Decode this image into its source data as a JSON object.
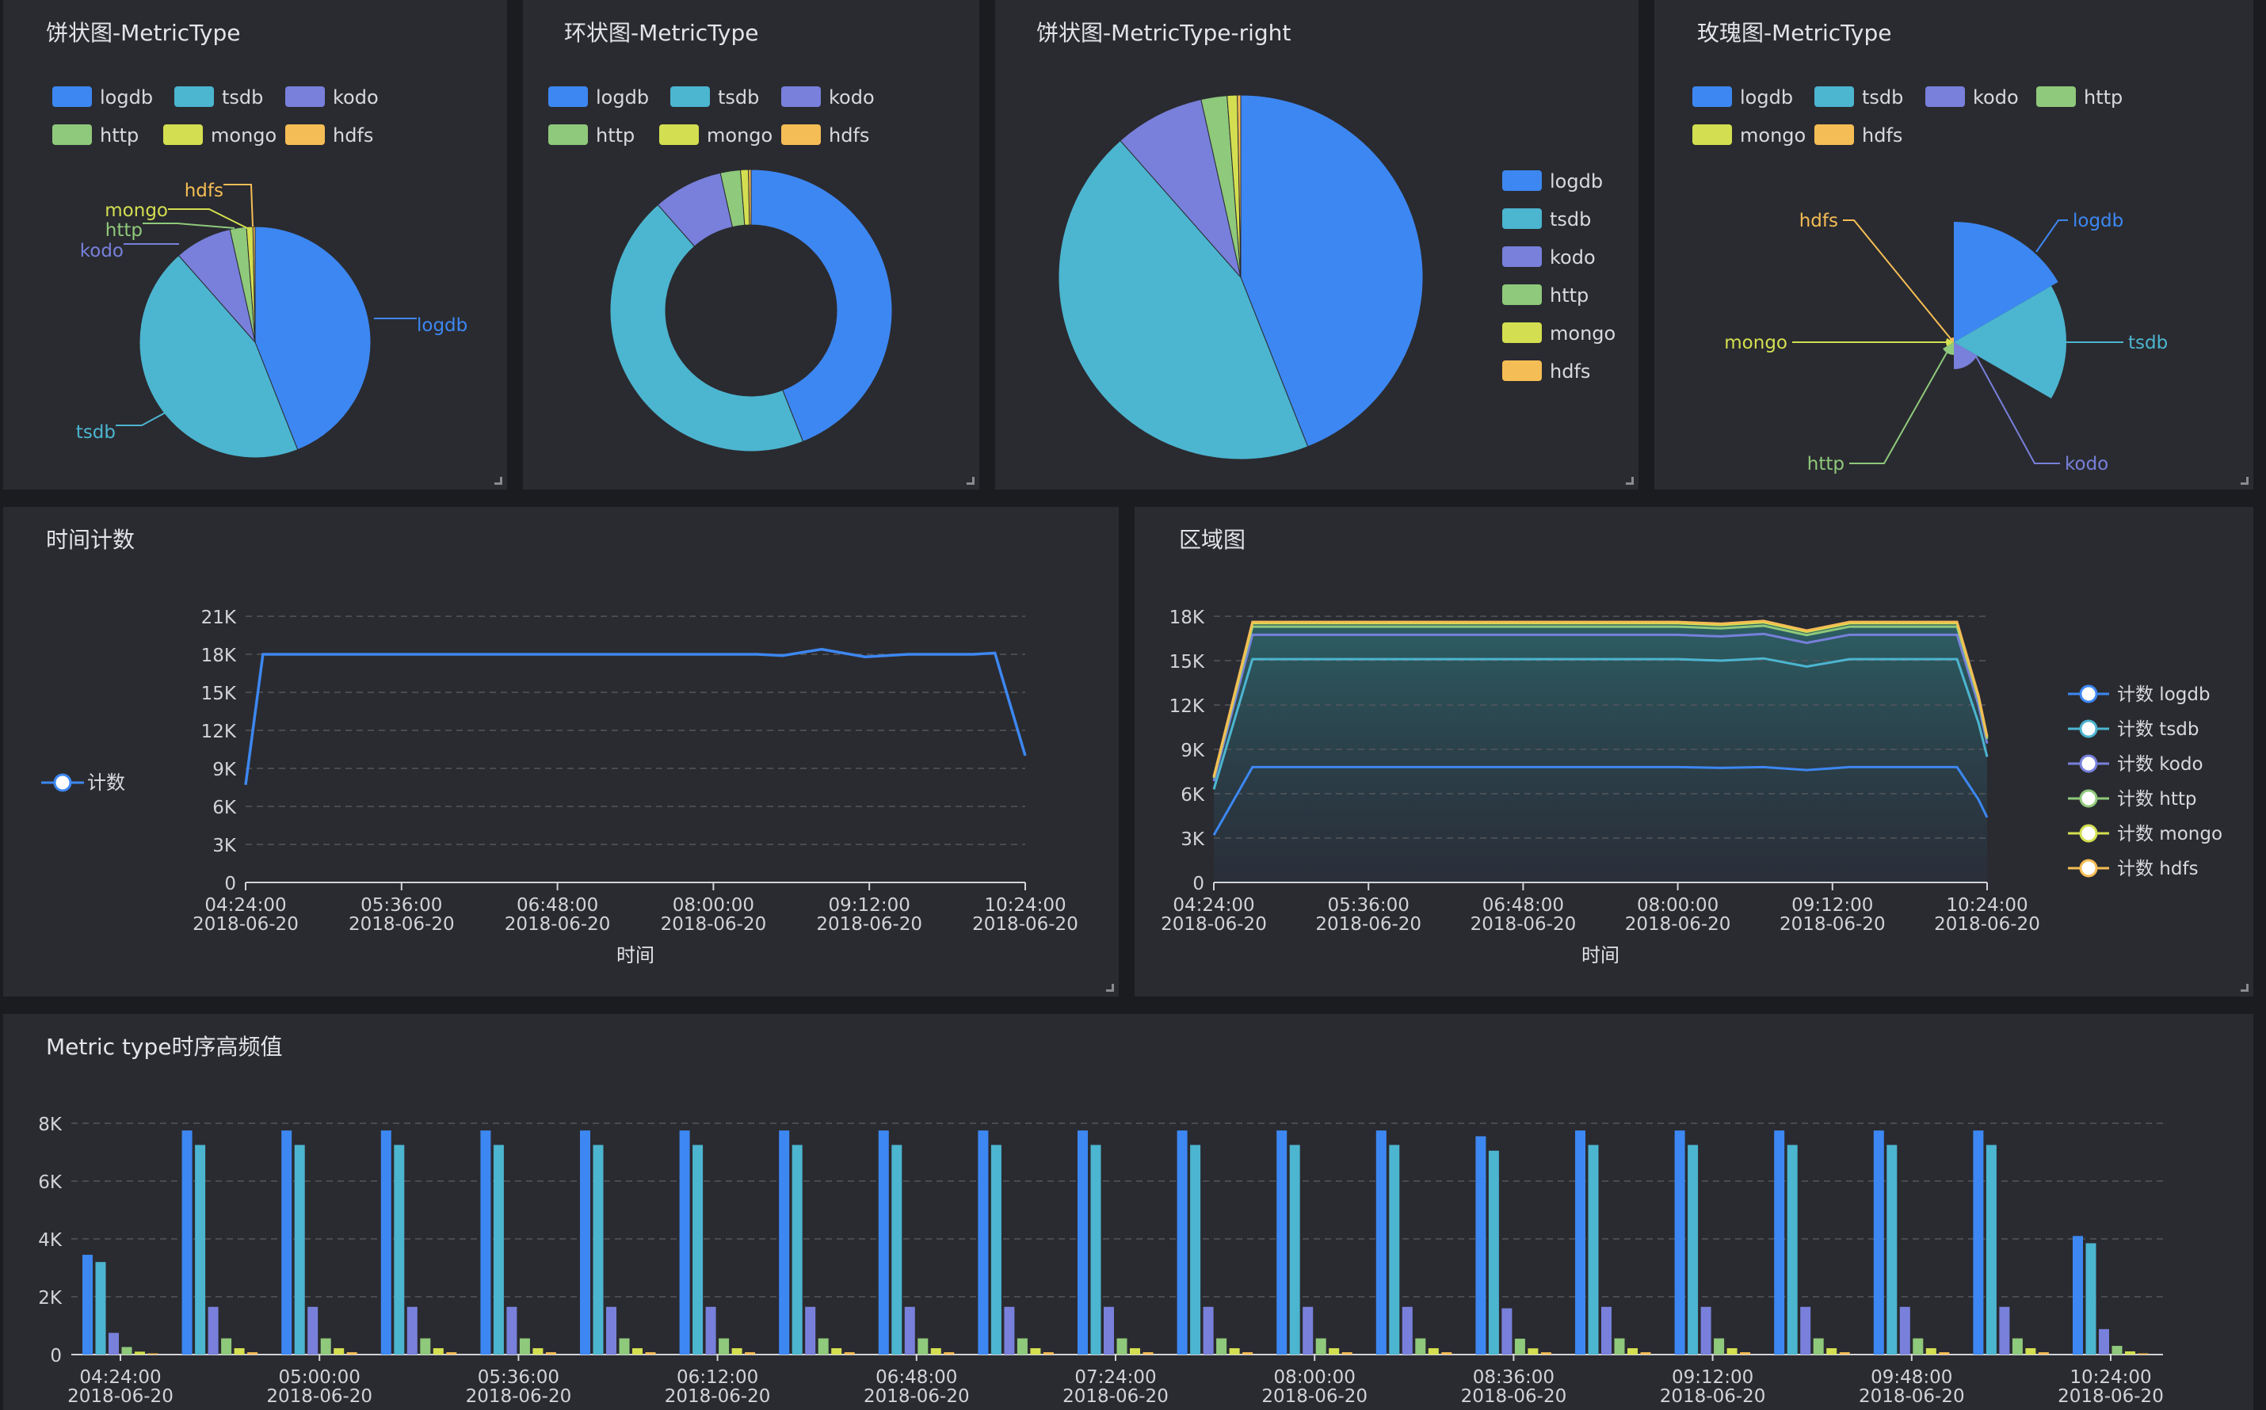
{
  "colors": {
    "logdb": "#3d87f2",
    "tsdb": "#4cb5d0",
    "kodo": "#7880db",
    "http": "#8fc97b",
    "mongo": "#d3df50",
    "hdfs": "#f5bd55"
  },
  "legend_order": [
    "logdb",
    "tsdb",
    "kodo",
    "http",
    "mongo",
    "hdfs"
  ],
  "panels": {
    "pie": {
      "title": "饼状图-MetricType"
    },
    "donut": {
      "title": "环状图-MetricType"
    },
    "pie_right": {
      "title": "饼状图-MetricType-right"
    },
    "rose": {
      "title": "玫瑰图-MetricType"
    },
    "time_count": {
      "title": "时间计数"
    },
    "area": {
      "title": "区域图"
    },
    "bars": {
      "title": "Metric type时序高频值"
    }
  },
  "chart_data": [
    {
      "id": "pie",
      "type": "pie",
      "title": "饼状图-MetricType",
      "labels": [
        "logdb",
        "tsdb",
        "kodo",
        "http",
        "mongo",
        "hdfs"
      ],
      "values": [
        44.0,
        44.5,
        8.0,
        2.3,
        0.9,
        0.3
      ],
      "legend": "top",
      "slice_labels": true
    },
    {
      "id": "donut",
      "type": "pie",
      "variant": "donut",
      "title": "环状图-MetricType",
      "labels": [
        "logdb",
        "tsdb",
        "kodo",
        "http",
        "mongo",
        "hdfs"
      ],
      "values": [
        44.0,
        44.5,
        8.0,
        2.3,
        0.9,
        0.3
      ],
      "legend": "top"
    },
    {
      "id": "pie_right",
      "type": "pie",
      "title": "饼状图-MetricType-right",
      "labels": [
        "logdb",
        "tsdb",
        "kodo",
        "http",
        "mongo",
        "hdfs"
      ],
      "values": [
        44.0,
        44.5,
        8.0,
        2.3,
        0.9,
        0.3
      ],
      "legend": "right"
    },
    {
      "id": "rose",
      "type": "pie",
      "variant": "rose",
      "title": "玫瑰图-MetricType",
      "labels": [
        "logdb",
        "tsdb",
        "kodo",
        "http",
        "mongo",
        "hdfs"
      ],
      "values": [
        44.0,
        44.5,
        8.0,
        2.3,
        0.9,
        0.3
      ],
      "legend": "top"
    },
    {
      "id": "time_count",
      "type": "line",
      "title": "时间计数",
      "xlabel": "时间",
      "x_ticks": [
        "04:24:00",
        "05:36:00",
        "06:48:00",
        "08:00:00",
        "09:12:00",
        "10:24:00"
      ],
      "x_tick_date": "2018-06-20",
      "x_range": [
        264,
        624
      ],
      "ylim": [
        0,
        21000
      ],
      "y_ticks": [
        "0",
        "3K",
        "6K",
        "9K",
        "12K",
        "15K",
        "18K",
        "21K"
      ],
      "legend": "left",
      "series": [
        {
          "name": "计数",
          "x": [
            264,
            272,
            440,
            480,
            500,
            512,
            530,
            550,
            570,
            600,
            610,
            624
          ],
          "y": [
            7700,
            18000,
            18000,
            18000,
            18000,
            17900,
            18400,
            17800,
            18000,
            18000,
            18100,
            10000
          ]
        }
      ]
    },
    {
      "id": "area",
      "type": "area",
      "title": "区域图",
      "stacked": true,
      "xlabel": "时间",
      "x_ticks": [
        "04:24:00",
        "05:36:00",
        "06:48:00",
        "08:00:00",
        "09:12:00",
        "10:24:00"
      ],
      "x_tick_date": "2018-06-20",
      "x_range": [
        264,
        624
      ],
      "ylim": [
        0,
        18000
      ],
      "y_ticks": [
        "0",
        "3K",
        "6K",
        "9K",
        "12K",
        "15K",
        "18K"
      ],
      "legend": "right",
      "x": [
        264,
        282,
        480,
        500,
        520,
        540,
        560,
        610,
        620,
        624
      ],
      "series": [
        {
          "name": "计数 logdb",
          "values": [
            3200,
            7800,
            7800,
            7750,
            7800,
            7600,
            7800,
            7800,
            5600,
            4400
          ]
        },
        {
          "name": "计数 tsdb",
          "values": [
            3100,
            7300,
            7300,
            7250,
            7350,
            7000,
            7300,
            7300,
            5200,
            4100
          ]
        },
        {
          "name": "计数 kodo",
          "values": [
            550,
            1650,
            1650,
            1640,
            1660,
            1600,
            1650,
            1650,
            1200,
            900
          ]
        },
        {
          "name": "计数 http",
          "values": [
            200,
            550,
            550,
            545,
            550,
            530,
            550,
            550,
            400,
            300
          ]
        },
        {
          "name": "计数 mongo",
          "values": [
            80,
            230,
            230,
            228,
            232,
            220,
            230,
            230,
            170,
            130
          ]
        },
        {
          "name": "计数 hdfs",
          "values": [
            30,
            90,
            90,
            88,
            90,
            85,
            90,
            90,
            70,
            50
          ]
        }
      ]
    },
    {
      "id": "bars",
      "type": "bar",
      "title": "Metric type时序高频值",
      "x_ticks": [
        "04:24:00",
        "05:00:00",
        "05:36:00",
        "06:12:00",
        "06:48:00",
        "07:24:00",
        "08:00:00",
        "08:36:00",
        "09:12:00",
        "09:48:00",
        "10:24:00"
      ],
      "x_tick_date": "2018-06-20",
      "ylim": [
        0,
        8000
      ],
      "y_ticks": [
        "0",
        "2K",
        "4K",
        "6K",
        "8K"
      ],
      "groups": 21,
      "series": [
        {
          "name": "logdb",
          "values": [
            3450,
            7750,
            7750,
            7750,
            7750,
            7750,
            7750,
            7750,
            7750,
            7750,
            7750,
            7750,
            7750,
            7750,
            7550,
            7750,
            7750,
            7750,
            7750,
            7750,
            4100
          ]
        },
        {
          "name": "tsdb",
          "values": [
            3200,
            7250,
            7250,
            7250,
            7250,
            7250,
            7250,
            7250,
            7250,
            7250,
            7250,
            7250,
            7250,
            7250,
            7050,
            7250,
            7250,
            7250,
            7250,
            7250,
            3850
          ]
        },
        {
          "name": "kodo",
          "values": [
            750,
            1650,
            1650,
            1650,
            1650,
            1650,
            1650,
            1650,
            1650,
            1650,
            1650,
            1650,
            1650,
            1650,
            1600,
            1650,
            1650,
            1650,
            1650,
            1650,
            880
          ]
        },
        {
          "name": "http",
          "values": [
            260,
            560,
            560,
            560,
            560,
            560,
            560,
            560,
            560,
            560,
            560,
            560,
            560,
            560,
            550,
            560,
            560,
            560,
            560,
            560,
            300
          ]
        },
        {
          "name": "mongo",
          "values": [
            100,
            220,
            220,
            220,
            220,
            220,
            220,
            220,
            220,
            220,
            220,
            220,
            220,
            220,
            215,
            220,
            220,
            220,
            220,
            220,
            110
          ]
        },
        {
          "name": "hdfs",
          "values": [
            40,
            80,
            80,
            80,
            80,
            80,
            80,
            80,
            80,
            80,
            80,
            80,
            80,
            80,
            78,
            80,
            80,
            80,
            80,
            80,
            40
          ]
        }
      ]
    }
  ]
}
